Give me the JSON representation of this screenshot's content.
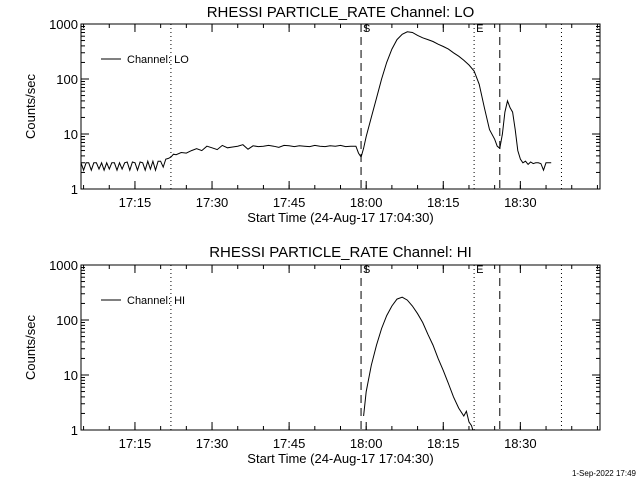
{
  "footer": "1-Sep-2022 17:49",
  "chart_data": [
    {
      "type": "line",
      "title": "RHESSI PARTICLE_RATE Channel: LO",
      "xlabel": "Start Time (24-Aug-17 17:04:30)",
      "ylabel": "Counts/sec",
      "ylim": [
        1,
        1000
      ],
      "yscale": "log",
      "xlim": [
        "17:04:30",
        "18:45:30"
      ],
      "x_ticks": [
        "17:15",
        "17:30",
        "17:45",
        "18:00",
        "18:15",
        "18:30"
      ],
      "y_ticks": [
        "1",
        "10",
        "100",
        "1000"
      ],
      "grid": false,
      "legend": {
        "position": "top-left",
        "entries": [
          "Channel: LO"
        ]
      },
      "vertical_markers": [
        {
          "time": "17:22:00",
          "style": "dotted",
          "label": ""
        },
        {
          "time": "17:59:00",
          "style": "dashed",
          "label": "S"
        },
        {
          "time": "18:21:00",
          "style": "dotted",
          "label": "E"
        },
        {
          "time": "18:26:00",
          "style": "dashed",
          "label": ""
        },
        {
          "time": "18:38:00",
          "style": "dotted",
          "label": ""
        }
      ],
      "series": [
        {
          "name": "Channel: LO",
          "x": [
            "17:04:30",
            "17:05:00",
            "17:05:30",
            "17:06:00",
            "17:06:30",
            "17:07:00",
            "17:07:30",
            "17:08:00",
            "17:08:30",
            "17:09:00",
            "17:09:30",
            "17:10:00",
            "17:10:30",
            "17:11:00",
            "17:11:30",
            "17:12:00",
            "17:12:30",
            "17:13:00",
            "17:13:30",
            "17:14:00",
            "17:14:30",
            "17:15:00",
            "17:15:30",
            "17:16:00",
            "17:16:30",
            "17:17:00",
            "17:17:30",
            "17:18:00",
            "17:18:30",
            "17:19:00",
            "17:19:30",
            "17:20:00",
            "17:20:30",
            "17:21:00",
            "17:21:30",
            "17:22:00",
            "17:22:30",
            "17:23:00",
            "17:24:00",
            "17:25:00",
            "17:26:00",
            "17:27:00",
            "17:28:00",
            "17:29:00",
            "17:30:00",
            "17:31:00",
            "17:32:00",
            "17:33:00",
            "17:34:00",
            "17:35:00",
            "17:36:00",
            "17:37:00",
            "17:38:00",
            "17:39:00",
            "17:40:00",
            "17:41:00",
            "17:42:00",
            "17:43:00",
            "17:44:00",
            "17:45:00",
            "17:46:00",
            "17:47:00",
            "17:48:00",
            "17:49:00",
            "17:50:00",
            "17:51:00",
            "17:52:00",
            "17:53:00",
            "17:54:00",
            "17:55:00",
            "17:56:00",
            "17:57:00",
            "17:58:00",
            "17:58:30",
            "17:59:00",
            "17:59:30",
            "18:00:00",
            "18:01:00",
            "18:02:00",
            "18:03:00",
            "18:04:00",
            "18:05:00",
            "18:06:00",
            "18:07:00",
            "18:08:00",
            "18:09:00",
            "18:10:00",
            "18:11:00",
            "18:12:00",
            "18:13:00",
            "18:14:00",
            "18:15:00",
            "18:16:00",
            "18:17:00",
            "18:18:00",
            "18:19:00",
            "18:20:00",
            "18:21:00",
            "18:22:00",
            "18:23:00",
            "18:24:00",
            "18:25:00",
            "18:25:30",
            "18:26:00",
            "18:26:30",
            "18:27:00",
            "18:27:30",
            "18:28:00",
            "18:28:30",
            "18:29:00",
            "18:29:30",
            "18:30:00",
            "18:30:30",
            "18:31:00",
            "18:31:30",
            "18:32:00",
            "18:32:30",
            "18:33:00",
            "18:33:30",
            "18:34:00",
            "18:34:30",
            "18:35:00",
            "18:36:00"
          ],
          "values": [
            3.0,
            2.2,
            3.0,
            3.0,
            2.2,
            3.0,
            3.0,
            2.3,
            3.0,
            2.2,
            3.0,
            2.3,
            3.0,
            3.0,
            2.2,
            3.0,
            2.3,
            3.0,
            3.1,
            2.2,
            3.1,
            3.0,
            2.2,
            3.1,
            3.0,
            2.2,
            3.2,
            2.3,
            3.2,
            2.2,
            3.2,
            3.2,
            2.5,
            3.5,
            3.6,
            3.8,
            4.3,
            4.2,
            4.6,
            4.5,
            5.0,
            5.4,
            5.0,
            6.0,
            5.6,
            5.2,
            6.2,
            5.6,
            5.8,
            6.0,
            6.4,
            5.3,
            6.1,
            5.9,
            6.0,
            6.2,
            6.0,
            5.7,
            6.2,
            6.1,
            5.9,
            6.1,
            6.0,
            5.9,
            6.2,
            6.0,
            5.9,
            6.1,
            6.0,
            6.2,
            5.9,
            6.0,
            6.0,
            4.5,
            3.8,
            5.5,
            9,
            20,
            45,
            100,
            200,
            350,
            520,
            650,
            720,
            700,
            620,
            560,
            520,
            480,
            430,
            390,
            350,
            300,
            260,
            220,
            180,
            140,
            80,
            30,
            12,
            8,
            6,
            5.5,
            10,
            25,
            40,
            30,
            25,
            12,
            5,
            3.5,
            3,
            3.2,
            2.8,
            3.1,
            2.9,
            3.0,
            3.0,
            2.9,
            2.2,
            3.0,
            3.0
          ]
        }
      ]
    },
    {
      "type": "line",
      "title": "RHESSI PARTICLE_RATE Channel: HI",
      "xlabel": "Start Time (24-Aug-17 17:04:30)",
      "ylabel": "Counts/sec",
      "ylim": [
        1,
        1000
      ],
      "yscale": "log",
      "xlim": [
        "17:04:30",
        "18:45:30"
      ],
      "x_ticks": [
        "17:15",
        "17:30",
        "17:45",
        "18:00",
        "18:15",
        "18:30"
      ],
      "y_ticks": [
        "1",
        "10",
        "100",
        "1000"
      ],
      "grid": false,
      "legend": {
        "position": "top-left",
        "entries": [
          "Channel: HI"
        ]
      },
      "vertical_markers": [
        {
          "time": "17:22:00",
          "style": "dotted",
          "label": ""
        },
        {
          "time": "17:59:00",
          "style": "dashed",
          "label": "S"
        },
        {
          "time": "18:21:00",
          "style": "dotted",
          "label": "E"
        },
        {
          "time": "18:26:00",
          "style": "dashed",
          "label": ""
        },
        {
          "time": "18:38:00",
          "style": "dotted",
          "label": ""
        }
      ],
      "series": [
        {
          "name": "Channel: HI",
          "x": [
            "17:59:30",
            "18:00:00",
            "18:01:00",
            "18:02:00",
            "18:03:00",
            "18:04:00",
            "18:05:00",
            "18:06:00",
            "18:07:00",
            "18:08:00",
            "18:09:00",
            "18:10:00",
            "18:11:00",
            "18:12:00",
            "18:13:00",
            "18:14:00",
            "18:15:00",
            "18:16:00",
            "18:17:00",
            "18:18:00",
            "18:19:00",
            "18:19:30",
            "18:20:00",
            "18:20:30",
            "18:20:45"
          ],
          "values": [
            1.8,
            5,
            15,
            35,
            70,
            120,
            180,
            240,
            260,
            230,
            180,
            130,
            90,
            55,
            35,
            20,
            12,
            7,
            4,
            2.5,
            1.8,
            2.2,
            1.4,
            1.2,
            1.0
          ]
        }
      ]
    }
  ]
}
